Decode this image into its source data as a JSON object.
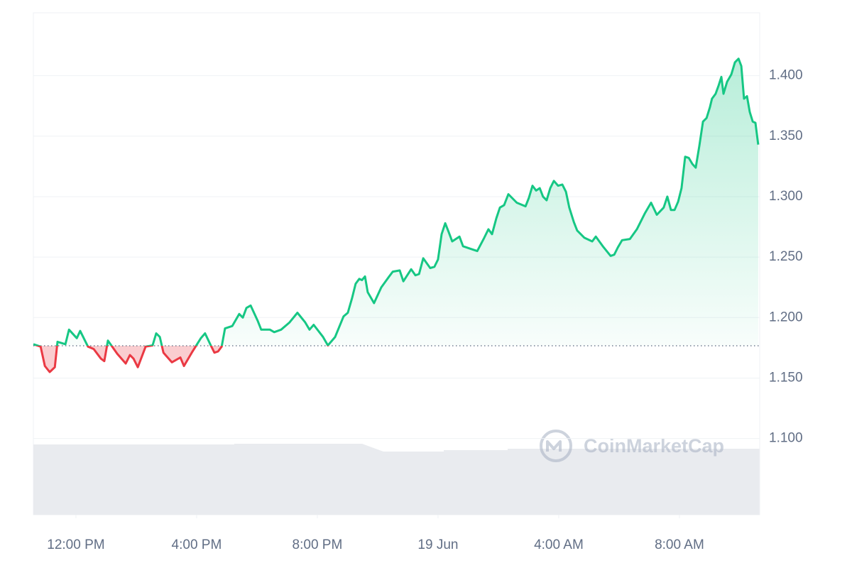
{
  "chart_data": {
    "type": "line",
    "watermark": "CoinMarketCap",
    "x": [
      10.59,
      10.83,
      10.97,
      11.13,
      11.3,
      11.39,
      11.65,
      11.77,
      12.03,
      12.14,
      12.4,
      12.59,
      12.83,
      12.94,
      13.06,
      13.37,
      13.65,
      13.79,
      13.91,
      14.05,
      14.31,
      14.54,
      14.66,
      14.78,
      14.9,
      15.18,
      15.46,
      15.58,
      15.84,
      16.14,
      16.28,
      16.47,
      16.59,
      16.71,
      16.83,
      16.94,
      17.18,
      17.41,
      17.53,
      17.65,
      17.79,
      18.03,
      18.14,
      18.43,
      18.57,
      18.8,
      19.08,
      19.34,
      19.6,
      19.74,
      19.88,
      20.19,
      20.35,
      20.59,
      20.87,
      21.01,
      21.15,
      21.27,
      21.39,
      21.48,
      21.58,
      21.67,
      21.88,
      22.12,
      22.38,
      22.5,
      22.73,
      22.85,
      23.11,
      23.25,
      23.37,
      23.51,
      23.74,
      23.88,
      24.0,
      24.12,
      24.24,
      24.35,
      24.47,
      24.71,
      24.83,
      25.06,
      25.3,
      25.53,
      25.67,
      25.79,
      25.93,
      26.05,
      26.19,
      26.33,
      26.61,
      26.9,
      27.01,
      27.13,
      27.25,
      27.37,
      27.48,
      27.6,
      27.72,
      27.84,
      27.98,
      28.12,
      28.24,
      28.35,
      28.5,
      28.61,
      28.73,
      28.85,
      29.11,
      29.23,
      29.46,
      29.72,
      29.84,
      29.96,
      30.1,
      30.36,
      30.59,
      30.85,
      31.06,
      31.25,
      31.48,
      31.6,
      31.72,
      31.84,
      31.96,
      32.07,
      32.19,
      32.31,
      32.43,
      32.54,
      32.66,
      32.78,
      32.9,
      33.01,
      33.08,
      33.2,
      33.3,
      33.39,
      33.46,
      33.58,
      33.72,
      33.84,
      33.96,
      34.05,
      34.14,
      34.24,
      34.33,
      34.43,
      34.52,
      34.61
    ],
    "series": [
      {
        "color": "#16c784",
        "down_color": "#ea3943",
        "values": [
          1.178,
          1.176,
          1.16,
          1.155,
          1.159,
          1.18,
          1.178,
          1.19,
          1.183,
          1.189,
          1.176,
          1.174,
          1.166,
          1.164,
          1.181,
          1.17,
          1.162,
          1.169,
          1.166,
          1.159,
          1.176,
          1.177,
          1.187,
          1.184,
          1.171,
          1.163,
          1.167,
          1.16,
          1.171,
          1.183,
          1.187,
          1.177,
          1.171,
          1.172,
          1.176,
          1.191,
          1.193,
          1.203,
          1.2,
          1.208,
          1.21,
          1.197,
          1.19,
          1.19,
          1.188,
          1.19,
          1.196,
          1.204,
          1.196,
          1.19,
          1.194,
          1.184,
          1.177,
          1.184,
          1.201,
          1.204,
          1.216,
          1.228,
          1.232,
          1.231,
          1.234,
          1.221,
          1.212,
          1.225,
          1.234,
          1.238,
          1.239,
          1.23,
          1.24,
          1.235,
          1.236,
          1.249,
          1.241,
          1.242,
          1.248,
          1.269,
          1.278,
          1.271,
          1.263,
          1.267,
          1.259,
          1.257,
          1.255,
          1.266,
          1.273,
          1.269,
          1.282,
          1.291,
          1.293,
          1.302,
          1.295,
          1.292,
          1.299,
          1.309,
          1.305,
          1.307,
          1.3,
          1.297,
          1.307,
          1.313,
          1.309,
          1.31,
          1.304,
          1.291,
          1.279,
          1.272,
          1.269,
          1.266,
          1.263,
          1.267,
          1.259,
          1.251,
          1.252,
          1.258,
          1.264,
          1.265,
          1.273,
          1.286,
          1.295,
          1.285,
          1.291,
          1.3,
          1.289,
          1.289,
          1.296,
          1.307,
          1.333,
          1.332,
          1.327,
          1.324,
          1.342,
          1.362,
          1.365,
          1.374,
          1.381,
          1.385,
          1.392,
          1.399,
          1.385,
          1.395,
          1.401,
          1.411,
          1.414,
          1.408,
          1.381,
          1.383,
          1.37,
          1.362,
          1.361,
          1.343
        ]
      }
    ],
    "baseline": 1.1767,
    "xlim": [
      10.59,
      34.66
    ],
    "ylim": [
      1.037,
      1.452
    ],
    "xticks": [
      {
        "value": 12,
        "label": "12:00 PM"
      },
      {
        "value": 16,
        "label": "4:00 PM"
      },
      {
        "value": 20,
        "label": "8:00 PM"
      },
      {
        "value": 24,
        "label": "19 Jun"
      },
      {
        "value": 28,
        "label": "4:00 AM"
      },
      {
        "value": 32,
        "label": "8:00 AM"
      }
    ],
    "yticks": [
      {
        "value": 1.1,
        "label": "1.100"
      },
      {
        "value": 1.15,
        "label": "1.150"
      },
      {
        "value": 1.2,
        "label": "1.200"
      },
      {
        "value": 1.25,
        "label": "1.250"
      },
      {
        "value": 1.3,
        "label": "1.300"
      },
      {
        "value": 1.35,
        "label": "1.350"
      },
      {
        "value": 1.4,
        "label": "1.400"
      }
    ],
    "grid": true
  }
}
